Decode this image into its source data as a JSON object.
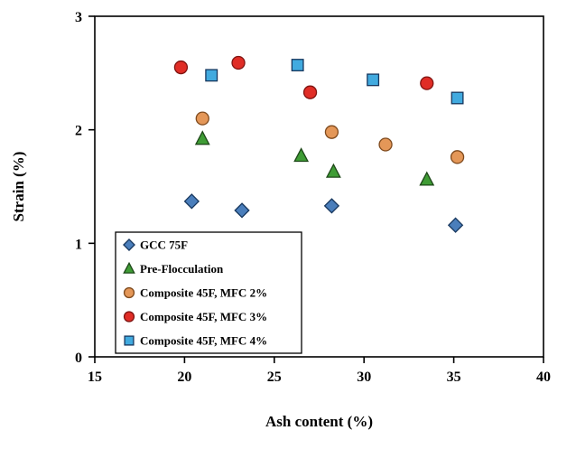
{
  "chart_data": {
    "type": "scatter",
    "title": "",
    "xlabel": "Ash content (%)",
    "ylabel": "Strain (%)",
    "xlim": [
      15,
      40
    ],
    "ylim": [
      0,
      3
    ],
    "xticks": [
      15,
      20,
      25,
      30,
      35,
      40
    ],
    "yticks": [
      0,
      1,
      2,
      3
    ],
    "grid": false,
    "legend_position": "lower-left-inside",
    "series": [
      {
        "name": "GCC 75F",
        "marker": "diamond",
        "fill": "#4a7ebb",
        "stroke": "#17375e",
        "points": [
          [
            20.4,
            1.37
          ],
          [
            23.2,
            1.29
          ],
          [
            28.2,
            1.33
          ],
          [
            35.1,
            1.16
          ]
        ]
      },
      {
        "name": "Pre-Flocculation",
        "marker": "triangle",
        "fill": "#3f9c35",
        "stroke": "#1d4818",
        "points": [
          [
            21.0,
            1.92
          ],
          [
            26.5,
            1.77
          ],
          [
            28.3,
            1.63
          ],
          [
            33.5,
            1.56
          ]
        ]
      },
      {
        "name": "Composite 45F, MFC 2%",
        "marker": "circle",
        "fill": "#e49758",
        "stroke": "#7f4a1d",
        "points": [
          [
            21.0,
            2.1
          ],
          [
            28.2,
            1.98
          ],
          [
            31.2,
            1.87
          ],
          [
            35.2,
            1.76
          ]
        ]
      },
      {
        "name": "Composite 45F, MFC 3%",
        "marker": "circle",
        "fill": "#e02d26",
        "stroke": "#7f1411",
        "points": [
          [
            19.8,
            2.55
          ],
          [
            23.0,
            2.59
          ],
          [
            27.0,
            2.33
          ],
          [
            33.5,
            2.41
          ]
        ]
      },
      {
        "name": "Composite 45F, MFC 4%",
        "marker": "square",
        "fill": "#41aadf",
        "stroke": "#17375e",
        "points": [
          [
            21.5,
            2.48
          ],
          [
            26.3,
            2.57
          ],
          [
            30.5,
            2.44
          ],
          [
            35.2,
            2.28
          ]
        ]
      }
    ]
  }
}
